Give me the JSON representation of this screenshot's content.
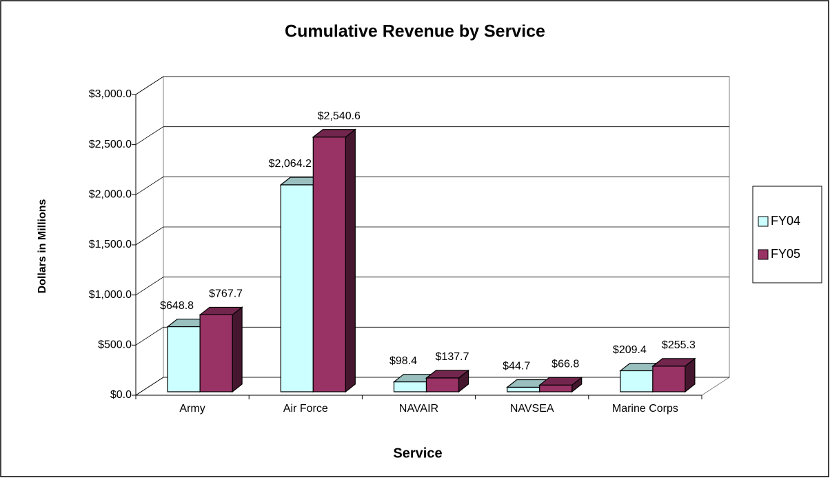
{
  "chart_data": {
    "type": "bar3d",
    "title": "Cumulative Revenue by Service",
    "x_label": "Service",
    "y_label": "Dollars in Millions",
    "categories": [
      "Army",
      "Air Force",
      "NAVAIR",
      "NAVSEA",
      "Marine Corps"
    ],
    "series": [
      {
        "name": "FY04",
        "color": "#ccffff",
        "values": [
          648.8,
          2064.2,
          98.4,
          44.7,
          209.4
        ],
        "value_labels": [
          "$648.8",
          "$2,064.2",
          "$98.4",
          "$44.7",
          "$209.4"
        ]
      },
      {
        "name": "FY05",
        "color": "#993366",
        "values": [
          767.7,
          2540.6,
          137.7,
          66.8,
          255.3
        ],
        "value_labels": [
          "$767.7",
          "$2,540.6",
          "$137.7",
          "$66.8",
          "$255.3"
        ]
      }
    ],
    "ylim": [
      0,
      3000
    ],
    "yticks": [
      {
        "value": 0,
        "label": "$0.0"
      },
      {
        "value": 500,
        "label": "$500.0"
      },
      {
        "value": 1000,
        "label": "$1,000.0"
      },
      {
        "value": 1500,
        "label": "$1,500.0"
      },
      {
        "value": 2000,
        "label": "$2,000.0"
      },
      {
        "value": 2500,
        "label": "$2,500.0"
      },
      {
        "value": 3000,
        "label": "$3,000.0"
      }
    ],
    "grid": true,
    "legend": "right"
  }
}
